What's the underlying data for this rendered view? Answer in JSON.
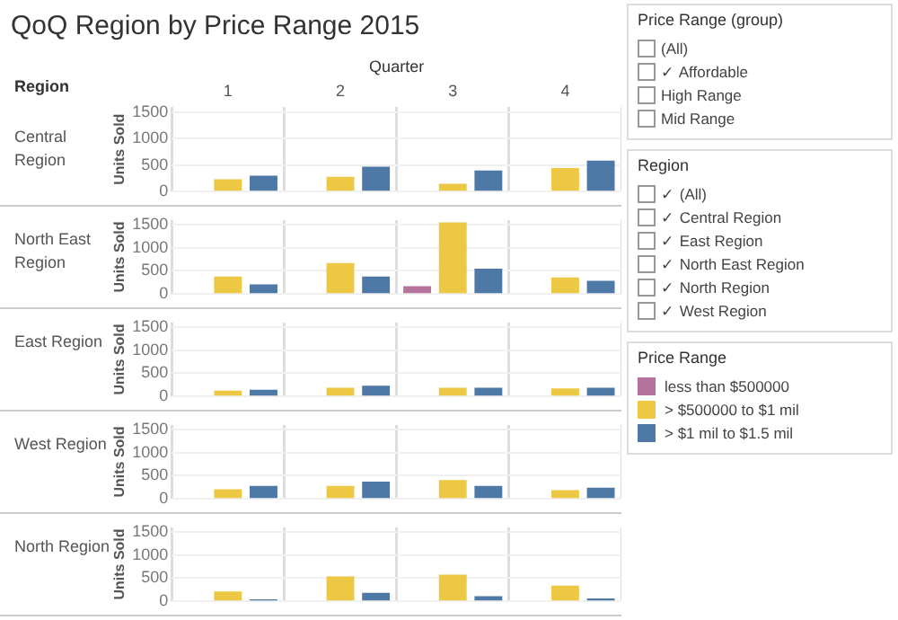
{
  "chart_data": [
    {
      "type": "other",
      "title": "QoQ Region by Price Range 2015",
      "annotations": [
        "Region"
      ]
    },
    {
      "type": "bar",
      "title": "Central Region",
      "xlabel": "Quarter",
      "ylabel": "Units Sold",
      "categories": [
        "1",
        "2",
        "3",
        "4"
      ],
      "ylim": [
        0,
        1600
      ],
      "yticks": [
        0,
        500,
        1000,
        1500
      ],
      "grid": true,
      "legend": "right",
      "legend_title": "Price Range",
      "series": [
        {
          "name": "less than $500000",
          "color": "#b5739d",
          "values": [
            null,
            null,
            null,
            null
          ]
        },
        {
          "name": "> $500000 to $1 mil",
          "color": "#ecc845",
          "values": [
            235,
            280,
            150,
            445
          ]
        },
        {
          "name": "> $1 mil to $1.5 mil",
          "color": "#4e79a7",
          "values": [
            300,
            470,
            400,
            585
          ]
        }
      ]
    },
    {
      "type": "bar",
      "title": "North East Region",
      "ylabel": "Units Sold",
      "categories": [
        "1",
        "2",
        "3",
        "4"
      ],
      "ylim": [
        0,
        1600
      ],
      "yticks": [
        0,
        500,
        1000,
        1500
      ],
      "grid": true,
      "tick_labels": "y",
      "series": [
        {
          "color": "#b5739d",
          "values": [
            null,
            null,
            170,
            null
          ]
        },
        {
          "color": "#ecc845",
          "values": [
            380,
            670,
            1550,
            360
          ]
        },
        {
          "color": "#4e79a7",
          "values": [
            210,
            380,
            550,
            285
          ]
        }
      ]
    },
    {
      "type": "bar",
      "title": "East Region",
      "ylabel": "Units Sold",
      "categories": [
        "1",
        "2",
        "3",
        "4"
      ],
      "ylim": [
        0,
        1600
      ],
      "yticks": [
        0,
        500,
        1000,
        1500
      ],
      "grid": true,
      "tick_labels": "y",
      "series": [
        {
          "color": "#b5739d",
          "values": [
            null,
            null,
            null,
            null
          ]
        },
        {
          "color": "#ecc845",
          "values": [
            125,
            190,
            190,
            175
          ]
        },
        {
          "color": "#4e79a7",
          "values": [
            145,
            230,
            190,
            190
          ]
        }
      ]
    },
    {
      "type": "bar",
      "title": "West Region",
      "ylabel": "Units Sold",
      "categories": [
        "1",
        "2",
        "3",
        "4"
      ],
      "ylim": [
        0,
        1600
      ],
      "yticks": [
        0,
        500,
        1000,
        1500
      ],
      "grid": true,
      "tick_labels": "y",
      "series": [
        {
          "color": "#b5739d",
          "values": [
            null,
            null,
            null,
            null
          ]
        },
        {
          "color": "#ecc845",
          "values": [
            210,
            280,
            405,
            190
          ]
        },
        {
          "color": "#4e79a7",
          "values": [
            280,
            375,
            280,
            240
          ]
        }
      ]
    },
    {
      "type": "bar",
      "title": "North Region",
      "ylabel": "Units Sold",
      "categories": [
        "1",
        "2",
        "3",
        "4"
      ],
      "ylim": [
        0,
        1600
      ],
      "yticks": [
        0,
        500,
        1000,
        1500
      ],
      "grid": true,
      "tick_labels": "y",
      "series": [
        {
          "color": "#b5739d",
          "values": [
            null,
            null,
            null,
            null
          ]
        },
        {
          "color": "#ecc845",
          "values": [
            215,
            540,
            575,
            340
          ]
        },
        {
          "color": "#4e79a7",
          "values": [
            45,
            185,
            110,
            60
          ]
        }
      ]
    },
    {
      "type": "other",
      "title": "Price Range (group)",
      "annotations": [
        "(All)",
        "✓ Affordable",
        "High Range",
        "Mid Range"
      ]
    },
    {
      "type": "other",
      "title": "Region",
      "annotations": [
        "✓ (All)",
        "✓ Central Region",
        "✓ East Region",
        "✓ North East Region",
        "✓ North Region",
        "✓ West Region"
      ]
    }
  ]
}
